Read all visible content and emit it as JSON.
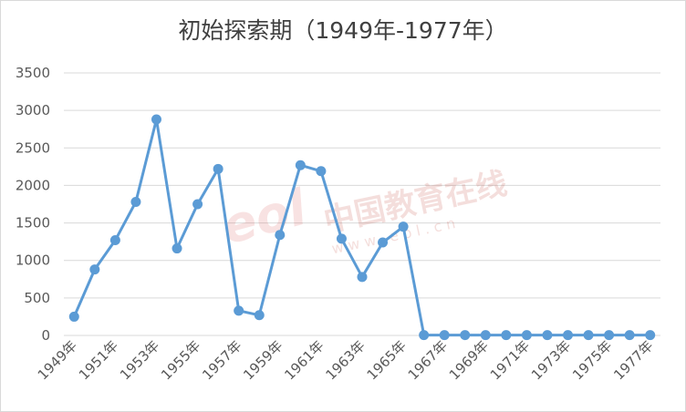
{
  "chart_data": {
    "type": "line",
    "title": "初始探索期（1949年-1977年）",
    "xlabel": "",
    "ylabel": "",
    "ylim": [
      0,
      3500
    ],
    "yticks": [
      0,
      500,
      1000,
      1500,
      2000,
      2500,
      3000,
      3500
    ],
    "grid": true,
    "legend": "none",
    "categories": [
      "1949年",
      "1950年",
      "1951年",
      "1952年",
      "1953年",
      "1954年",
      "1955年",
      "1956年",
      "1957年",
      "1958年",
      "1959年",
      "1960年",
      "1961年",
      "1962年",
      "1963年",
      "1964年",
      "1965年",
      "1966年",
      "1967年",
      "1968年",
      "1969年",
      "1970年",
      "1971年",
      "1972年",
      "1973年",
      "1974年",
      "1975年",
      "1976年",
      "1977年"
    ],
    "tick_labels": [
      "1949年",
      "1951年",
      "1953年",
      "1955年",
      "1957年",
      "1959年",
      "1961年",
      "1963年",
      "1965年",
      "1967年",
      "1969年",
      "1971年",
      "1973年",
      "1975年",
      "1977年"
    ],
    "series": [
      {
        "color": "#5b9bd5",
        "values": [
          250,
          880,
          1270,
          1780,
          2880,
          1160,
          1750,
          2220,
          330,
          270,
          1340,
          2270,
          2190,
          1290,
          780,
          1240,
          1450,
          5,
          5,
          5,
          5,
          5,
          5,
          5,
          5,
          5,
          5,
          5,
          5
        ]
      }
    ],
    "watermark": {
      "text": "中国教育在线",
      "url": "w w w . e o l . c n",
      "logo": "eol"
    }
  }
}
